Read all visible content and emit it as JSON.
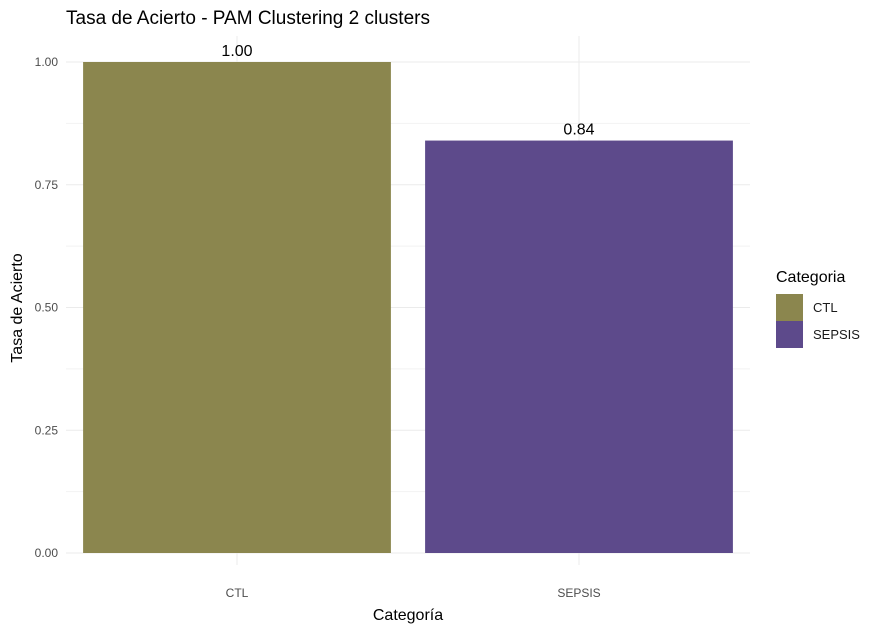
{
  "chart_data": {
    "type": "bar",
    "title": "Tasa de Acierto - PAM Clustering 2 clusters",
    "xlabel": "Categoría",
    "ylabel": "Tasa de Acierto",
    "categories": [
      "CTL",
      "SEPSIS"
    ],
    "values": [
      1.0,
      0.84
    ],
    "data_labels": [
      "1.00",
      "0.84"
    ],
    "colors": [
      "#8B864E",
      "#5D4A8B"
    ],
    "ylim": [
      0,
      1.05
    ],
    "yticks": [
      0.0,
      0.25,
      0.5,
      0.75,
      1.0
    ],
    "ytick_labels": [
      "0.00",
      "0.25",
      "0.50",
      "0.75",
      "1.00"
    ],
    "grid": true,
    "legend": {
      "title": "Categoria",
      "placement": "right",
      "entries": [
        "CTL",
        "SEPSIS"
      ]
    }
  }
}
